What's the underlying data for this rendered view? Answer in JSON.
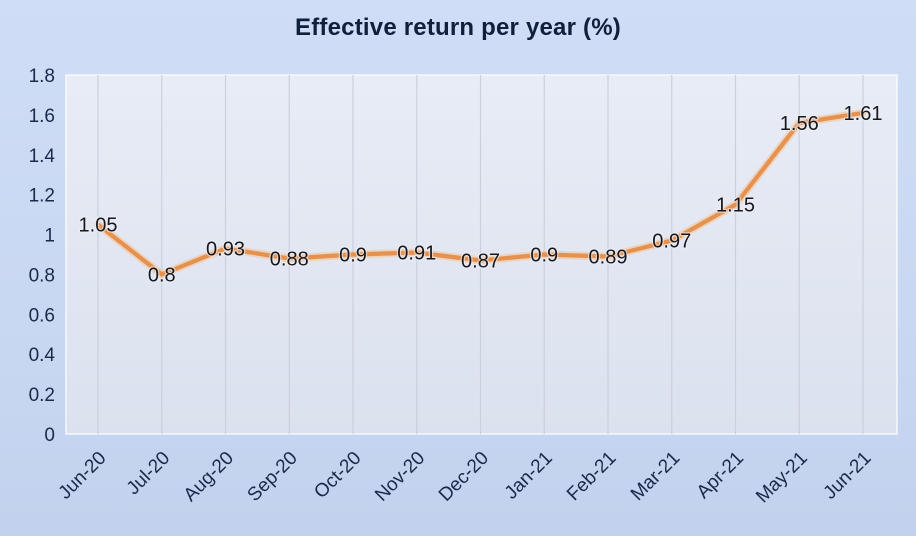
{
  "chart_data": {
    "type": "line",
    "title": "Effective return per year (%)",
    "categories": [
      "Jun-20",
      "Jul-20",
      "Aug-20",
      "Sep-20",
      "Oct-20",
      "Nov-20",
      "Dec-20",
      "Jan-21",
      "Feb-21",
      "Mar-21",
      "Apr-21",
      "May-21",
      "Jun-21"
    ],
    "values": [
      1.05,
      0.8,
      0.93,
      0.88,
      0.9,
      0.91,
      0.87,
      0.9,
      0.89,
      0.97,
      1.15,
      1.56,
      1.61
    ],
    "point_labels": [
      "1.05",
      "0.8",
      "0.93",
      "0.88",
      "0.9",
      "0.91",
      "0.87",
      "0.9",
      "0.89",
      "0.97",
      "1.15",
      "1.56",
      "1.61"
    ],
    "xlabel": "",
    "ylabel": "",
    "ylim": [
      0,
      1.8
    ],
    "ytick_step": 0.2,
    "ytick_labels": [
      "0",
      "0.2",
      "0.4",
      "0.6",
      "0.8",
      "1",
      "1.2",
      "1.4",
      "1.6",
      "1.8"
    ],
    "x_tick_rotation": -45,
    "grid": "vertical-only",
    "legend_position": "none",
    "data_label_position": "center",
    "colors": {
      "line": "#e5914f",
      "line_halo": "#f3c79e",
      "data_label": "#17171c",
      "axis_label": "#1b2a4a",
      "title": "#101f3c",
      "page_background": "#c9d8f2",
      "plot_background_top": "#e8ecf6",
      "plot_background_bottom": "#dbe1ee",
      "gridline": "#cbd0dd"
    }
  }
}
